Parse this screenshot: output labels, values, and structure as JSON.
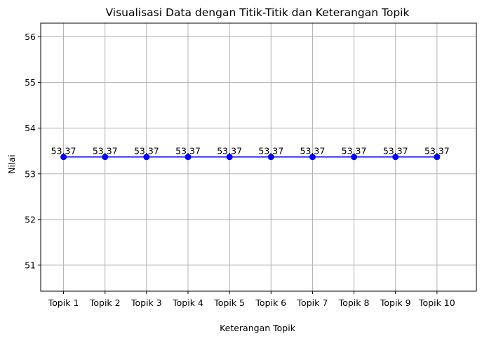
{
  "chart_data": {
    "type": "line",
    "title": "Visualisasi Data dengan Titik-Titik dan Keterangan Topik",
    "xlabel": "Keterangan Topik",
    "ylabel": "Nilai",
    "categories": [
      "Topik 1",
      "Topik 2",
      "Topik 3",
      "Topik 4",
      "Topik 5",
      "Topik 6",
      "Topik 7",
      "Topik 8",
      "Topik 9",
      "Topik 10"
    ],
    "series": [
      {
        "values": [
          53.37,
          53.37,
          53.37,
          53.37,
          53.37,
          53.37,
          53.37,
          53.37,
          53.37,
          53.37
        ],
        "color": "#0000ff",
        "marker": "circle"
      }
    ],
    "data_labels": [
      "53.37",
      "53.37",
      "53.37",
      "53.37",
      "53.37",
      "53.37",
      "53.37",
      "53.37",
      "53.37",
      "53.37"
    ],
    "ylim": [
      50.43,
      56.3
    ],
    "yticks": [
      51,
      52,
      53,
      54,
      55,
      56
    ],
    "grid": true,
    "colors": {
      "line": "#0000ff",
      "grid": "#b0b0b0",
      "axis": "#000000"
    }
  }
}
